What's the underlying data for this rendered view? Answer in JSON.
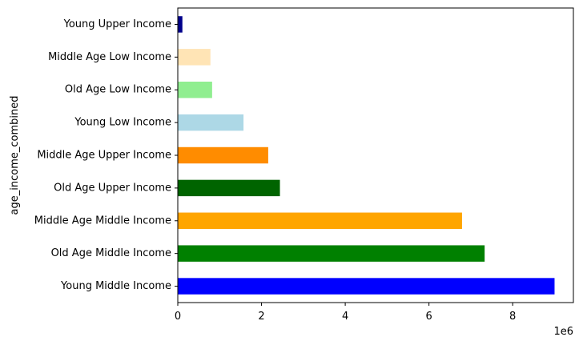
{
  "chart_data": {
    "type": "bar",
    "orientation": "horizontal",
    "title": "",
    "xlabel": "",
    "ylabel": "age_income_combined",
    "x_offset_text": "1e6",
    "xlim": [
      0,
      9450000
    ],
    "xticks": [
      0,
      2000000,
      4000000,
      6000000,
      8000000
    ],
    "xtick_labels": [
      "0",
      "2",
      "4",
      "6",
      "8"
    ],
    "grid": false,
    "legend": "none",
    "categories": [
      "Young Middle Income",
      "Old Age Middle Income",
      "Middle Age Middle Income",
      "Old Age Upper Income",
      "Middle Age Upper Income",
      "Young Low Income",
      "Old Age Low Income",
      "Middle Age Low Income",
      "Young Upper Income"
    ],
    "values": [
      9000000,
      7330000,
      6790000,
      2440000,
      2160000,
      1570000,
      820000,
      780000,
      110000
    ],
    "colors": [
      "#0000ff",
      "#008000",
      "#ffa500",
      "#006400",
      "#ff8c00",
      "#add8e6",
      "#90ee90",
      "#ffe4b5",
      "#00008b"
    ]
  }
}
